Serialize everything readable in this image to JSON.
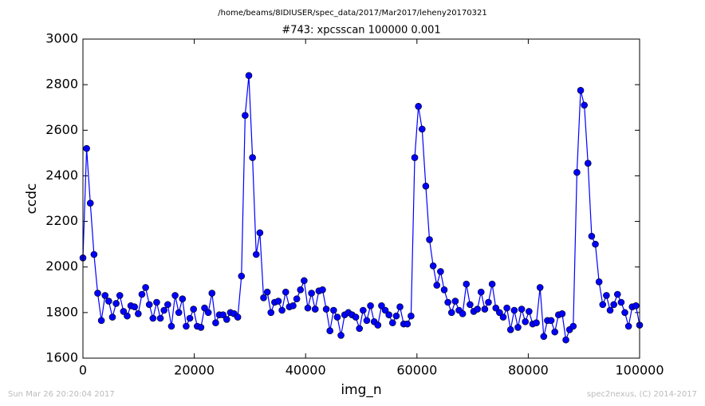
{
  "chart_data": {
    "type": "line",
    "suptitle": "/home/beams/8IDIUSER/spec_data/2017/Mar2017/leheny20170321",
    "title": "#743: xpcsscan 100000 0.001",
    "xlabel": "img_n",
    "ylabel": "ccdc",
    "footer_left": "Sun Mar 26 20:20:04 2017",
    "footer_right": "spec2nexus, (C) 2014-2017",
    "xlim": [
      0,
      100000
    ],
    "xticks": [
      0,
      20000,
      40000,
      60000,
      80000,
      100000
    ],
    "ylim": [
      1600,
      3000
    ],
    "yticks": [
      1600,
      1800,
      2000,
      2200,
      2400,
      2600,
      2800,
      3000
    ],
    "x": [
      0,
      662,
      1325,
      1987,
      2649,
      3311,
      3974,
      4636,
      5298,
      5960,
      6623,
      7285,
      7947,
      8609,
      9272,
      9934,
      10596,
      11258,
      11921,
      12583,
      13245,
      13907,
      14570,
      15232,
      15894,
      16556,
      17219,
      17881,
      18543,
      19205,
      19868,
      20530,
      21192,
      21854,
      22517,
      23179,
      23841,
      24503,
      25166,
      25828,
      26490,
      27152,
      27815,
      28477,
      29139,
      29801,
      30464,
      31126,
      31788,
      32450,
      33113,
      33775,
      34437,
      35099,
      35762,
      36424,
      37086,
      37748,
      38411,
      39073,
      39735,
      40397,
      41060,
      41722,
      42384,
      43046,
      43709,
      44371,
      45033,
      45695,
      46358,
      47020,
      47682,
      48344,
      49007,
      49669,
      50331,
      50993,
      51656,
      52318,
      52980,
      53642,
      54305,
      54967,
      55629,
      56291,
      56954,
      57616,
      58278,
      58940,
      59603,
      60265,
      60927,
      61589,
      62252,
      62914,
      63576,
      64238,
      64901,
      65563,
      66225,
      66887,
      67550,
      68212,
      68874,
      69536,
      70199,
      70861,
      71523,
      72185,
      72848,
      73510,
      74172,
      74834,
      75497,
      76159,
      76821,
      77483,
      78146,
      78808,
      79470,
      80132,
      80795,
      81457,
      82119,
      82781,
      83444,
      84106,
      84768,
      85430,
      86093,
      86755,
      87417,
      88079,
      88742,
      89404,
      90066,
      90728,
      91391,
      92053,
      92715,
      93377,
      94040,
      94702,
      95364,
      96026,
      96689,
      97351,
      98013,
      98675,
      99338,
      100000
    ],
    "series": [
      {
        "color": "#0000ff",
        "values": [
          2040,
          2520,
          2280,
          2055,
          1885,
          1765,
          1875,
          1850,
          1780,
          1840,
          1875,
          1805,
          1785,
          1830,
          1825,
          1795,
          1880,
          1910,
          1835,
          1775,
          1845,
          1775,
          1810,
          1835,
          1740,
          1875,
          1800,
          1860,
          1740,
          1775,
          1815,
          1740,
          1735,
          1820,
          1800,
          1885,
          1755,
          1790,
          1790,
          1770,
          1800,
          1795,
          1780,
          1960,
          2665,
          2840,
          2480,
          2055,
          2150,
          1865,
          1890,
          1800,
          1845,
          1850,
          1810,
          1890,
          1825,
          1830,
          1860,
          1900,
          1940,
          1820,
          1885,
          1815,
          1895,
          1900,
          1815,
          1720,
          1810,
          1780,
          1700,
          1790,
          1800,
          1790,
          1780,
          1730,
          1810,
          1765,
          1830,
          1760,
          1745,
          1830,
          1810,
          1790,
          1755,
          1785,
          1825,
          1750,
          1750,
          1785,
          2480,
          2705,
          2605,
          2355,
          2120,
          2005,
          1920,
          1980,
          1900,
          1845,
          1800,
          1850,
          1810,
          1795,
          1925,
          1835,
          1805,
          1815,
          1890,
          1815,
          1845,
          1925,
          1820,
          1800,
          1780,
          1820,
          1725,
          1810,
          1735,
          1815,
          1760,
          1805,
          1750,
          1755,
          1910,
          1695,
          1765,
          1765,
          1715,
          1790,
          1795,
          1680,
          1725,
          1740,
          2415,
          2775,
          2710,
          2455,
          2135,
          2100,
          1935,
          1835,
          1875,
          1810,
          1835,
          1880,
          1845,
          1800,
          1740,
          1825,
          1830,
          1745
        ]
      }
    ]
  }
}
